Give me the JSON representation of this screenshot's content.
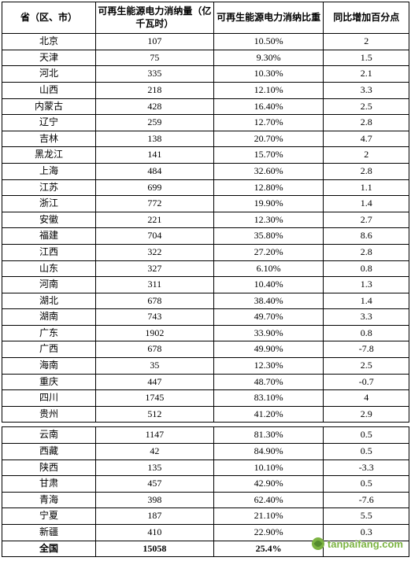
{
  "table": {
    "headers": {
      "province": "省（区、市）",
      "consumption": "可再生能源电力消纳量（亿千瓦时）",
      "ratio": "可再生能源电力消纳比重",
      "yoy": "同比增加百分点"
    },
    "rows_block1": [
      {
        "province": "北京",
        "consumption": "107",
        "ratio": "10.50%",
        "yoy": "2"
      },
      {
        "province": "天津",
        "consumption": "75",
        "ratio": "9.30%",
        "yoy": "1.5"
      },
      {
        "province": "河北",
        "consumption": "335",
        "ratio": "10.30%",
        "yoy": "2.1"
      },
      {
        "province": "山西",
        "consumption": "218",
        "ratio": "12.10%",
        "yoy": "3.3"
      },
      {
        "province": "内蒙古",
        "consumption": "428",
        "ratio": "16.40%",
        "yoy": "2.5"
      },
      {
        "province": "辽宁",
        "consumption": "259",
        "ratio": "12.70%",
        "yoy": "2.8"
      },
      {
        "province": "吉林",
        "consumption": "138",
        "ratio": "20.70%",
        "yoy": "4.7"
      },
      {
        "province": "黑龙江",
        "consumption": "141",
        "ratio": "15.70%",
        "yoy": "2"
      },
      {
        "province": "上海",
        "consumption": "484",
        "ratio": "32.60%",
        "yoy": "2.8"
      },
      {
        "province": "江苏",
        "consumption": "699",
        "ratio": "12.80%",
        "yoy": "1.1"
      },
      {
        "province": "浙江",
        "consumption": "772",
        "ratio": "19.90%",
        "yoy": "1.4"
      },
      {
        "province": "安徽",
        "consumption": "221",
        "ratio": "12.30%",
        "yoy": "2.7"
      },
      {
        "province": "福建",
        "consumption": "704",
        "ratio": "35.80%",
        "yoy": "8.6"
      },
      {
        "province": "江西",
        "consumption": "322",
        "ratio": "27.20%",
        "yoy": "2.8"
      },
      {
        "province": "山东",
        "consumption": "327",
        "ratio": "6.10%",
        "yoy": "0.8"
      },
      {
        "province": "河南",
        "consumption": "311",
        "ratio": "10.40%",
        "yoy": "1.3"
      },
      {
        "province": "湖北",
        "consumption": "678",
        "ratio": "38.40%",
        "yoy": "1.4"
      },
      {
        "province": "湖南",
        "consumption": "743",
        "ratio": "49.70%",
        "yoy": "3.3"
      },
      {
        "province": "广东",
        "consumption": "1902",
        "ratio": "33.90%",
        "yoy": "0.8"
      },
      {
        "province": "广西",
        "consumption": "678",
        "ratio": "49.90%",
        "yoy": "-7.8"
      },
      {
        "province": "海南",
        "consumption": "35",
        "ratio": "12.30%",
        "yoy": "2.5"
      },
      {
        "province": "重庆",
        "consumption": "447",
        "ratio": "48.70%",
        "yoy": "-0.7"
      },
      {
        "province": "四川",
        "consumption": "1745",
        "ratio": "83.10%",
        "yoy": "4"
      },
      {
        "province": "贵州",
        "consumption": "512",
        "ratio": "41.20%",
        "yoy": "2.9"
      }
    ],
    "rows_block2": [
      {
        "province": "云南",
        "consumption": "1147",
        "ratio": "81.30%",
        "yoy": "0.5"
      },
      {
        "province": "西藏",
        "consumption": "42",
        "ratio": "84.90%",
        "yoy": "0.5"
      },
      {
        "province": "陕西",
        "consumption": "135",
        "ratio": "10.10%",
        "yoy": "-3.3"
      },
      {
        "province": "甘肃",
        "consumption": "457",
        "ratio": "42.90%",
        "yoy": "0.5"
      },
      {
        "province": "青海",
        "consumption": "398",
        "ratio": "62.40%",
        "yoy": "-7.6"
      },
      {
        "province": "宁夏",
        "consumption": "187",
        "ratio": "21.10%",
        "yoy": "5.5"
      },
      {
        "province": "新疆",
        "consumption": "410",
        "ratio": "22.90%",
        "yoy": "0.3"
      }
    ],
    "total_row": {
      "province": "全国",
      "consumption": "15058",
      "ratio": "25.4%",
      "yoy": ""
    }
  },
  "watermark": {
    "text": "tanpaifang.com"
  }
}
